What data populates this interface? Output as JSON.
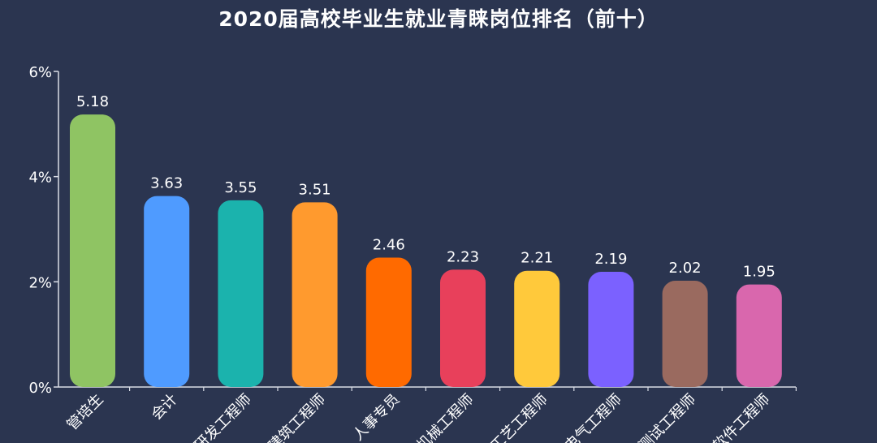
{
  "chart_data": {
    "type": "bar",
    "title": "2020届高校毕业生就业青睐岗位排名（前十）",
    "categories": [
      "管培生",
      "会计",
      "研发工程师",
      "建筑工程师",
      "人事专员",
      "机械工程师",
      "工艺工程师",
      "电气工程师",
      "测试工程师",
      "软件工程师"
    ],
    "values": [
      5.18,
      3.63,
      3.55,
      3.51,
      2.46,
      2.23,
      2.21,
      2.19,
      2.02,
      1.95
    ],
    "value_labels": [
      "5.18",
      "3.63",
      "3.55",
      "3.51",
      "2.46",
      "2.23",
      "2.21",
      "2.19",
      "2.02",
      "1.95"
    ],
    "colors": [
      "#8fc463",
      "#4f9bff",
      "#1bb3ad",
      "#ff9a2e",
      "#ff6a00",
      "#e8405b",
      "#ffc93b",
      "#7b61ff",
      "#9a6a5f",
      "#d967ad"
    ],
    "ylim": [
      0,
      6
    ],
    "yticks": [
      0,
      2,
      4,
      6
    ],
    "ytick_labels": [
      "0%",
      "2%",
      "4%",
      "6%"
    ],
    "xlabel": "",
    "ylabel": "",
    "grid": false,
    "legend": "none"
  }
}
